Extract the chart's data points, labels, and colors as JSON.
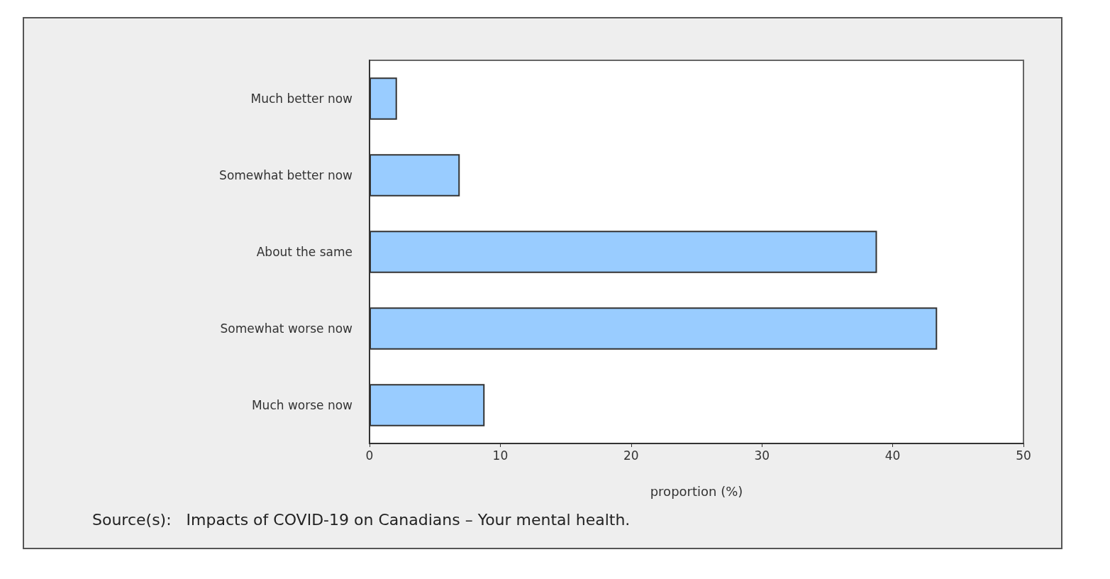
{
  "chart_data": {
    "type": "bar",
    "orientation": "horizontal",
    "categories": [
      "Much better now",
      "Somewhat better now",
      "About the same",
      "Somewhat worse now",
      "Much worse now"
    ],
    "values": [
      2.1,
      6.9,
      38.8,
      43.4,
      8.8
    ],
    "color": "#99ccff",
    "xlabel": "proportion (%)",
    "xlim": [
      0,
      50
    ],
    "xticks": [
      0,
      10,
      20,
      30,
      40,
      50
    ],
    "grid": false,
    "annotations": [
      "Source(s):   Impacts of COVID-19 on Canadians – Your mental health."
    ]
  }
}
